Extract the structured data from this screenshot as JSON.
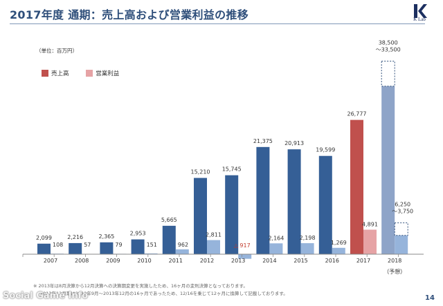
{
  "page": {
    "title": "2017年度 通期：売上高および営業利益の推移",
    "logo_text": "K Lab",
    "unit": "（単位：百万円）",
    "page_number": "14",
    "watermark": "Social Game Info",
    "footnotes": [
      "※ 2013年は8月決算から12月決算への決算期変更を実施したため、16ヶ月の変則決算となっております。",
      "2013年12月期は2012年9月〜2013年12月の16ヶ月であったため、12/16を乗じて12ヶ月に換算して記載しております。"
    ]
  },
  "colors": {
    "title": "#2e4e7a",
    "sales": "#355f96",
    "profit": "#96b4db",
    "sales_2017": "#c0504d",
    "profit_2017": "#e6a3a5",
    "forecast_sales": "#8ea4c8",
    "forecast_border": "#2e4e7a",
    "negative": "#c0392b"
  },
  "chart_data": {
    "type": "bar",
    "categories": [
      "2007",
      "2008",
      "2009",
      "2010",
      "2011",
      "2012",
      "2013",
      "2014",
      "2015",
      "2016",
      "2017",
      "2018"
    ],
    "category_note": {
      "2018": "（予想）"
    },
    "series": [
      {
        "name": "売上高",
        "values": [
          2099,
          2216,
          2365,
          2953,
          5665,
          15210,
          15745,
          21375,
          20913,
          19599,
          26777,
          33500
        ],
        "labels": [
          "2,099",
          "2,216",
          "2,365",
          "2,953",
          "5,665",
          "15,210",
          "15,745",
          "21,375",
          "20,913",
          "19,599",
          "26,777",
          "38,500\n～33,500"
        ]
      },
      {
        "name": "営業利益",
        "values": [
          108,
          57,
          79,
          151,
          962,
          2811,
          -917,
          2164,
          2198,
          1269,
          4891,
          3750
        ],
        "labels": [
          "108",
          "57",
          "79",
          "151",
          "962",
          "2,811",
          "△ 917",
          "2,164",
          "2,198",
          "1,269",
          "4,891",
          "6,250\n～3,750"
        ]
      }
    ],
    "forecast": {
      "category": "2018",
      "sales_range": [
        33500,
        38500
      ],
      "profit_range": [
        3750,
        6250
      ]
    },
    "legend_position": "top-left",
    "grid": false
  }
}
